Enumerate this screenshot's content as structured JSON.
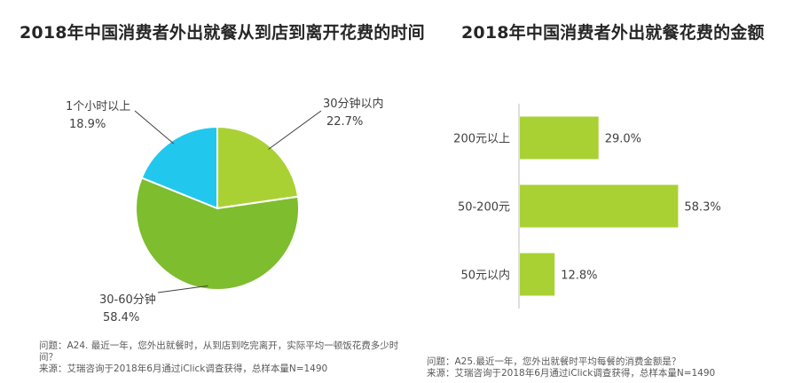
{
  "chart_data": [
    {
      "type": "pie",
      "title": "2018年中国消费者外出就餐从到店到离开花费的时间",
      "slices": [
        {
          "label": "30分钟以内",
          "value": 22.7,
          "value_label": "22.7%",
          "color": "#A9D134"
        },
        {
          "label": "30-60分钟",
          "value": 58.4,
          "value_label": "58.4%",
          "color": "#7DBD2E"
        },
        {
          "label": "1个小时以上",
          "value": 18.9,
          "value_label": "18.9%",
          "color": "#22C7EE"
        }
      ],
      "notes": [
        "问题：A24. 最近一年，您外出就餐时，从到店到吃完离开，实际平均一顿饭花费多少时",
        "间？",
        "来源：艾瑞咨询于2018年6月通过iClick调查获得，总样本量N=1490"
      ]
    },
    {
      "type": "bar",
      "orientation": "horizontal",
      "title": "2018年中国消费者外出就餐花费的金额",
      "categories": [
        "200元以上",
        "50-200元",
        "50元以内"
      ],
      "values": [
        29.0,
        58.3,
        12.8
      ],
      "value_labels": [
        "29.0%",
        "58.3%",
        "12.8%"
      ],
      "color": "#A9D134",
      "xlim": [
        0,
        100
      ],
      "notes": [
        "问题：A25.最近一年，您外出就餐时平均每餐的消费金额是？",
        "来源：艾瑞咨询于2018年6月通过iClick调查获得，总样本量N=1490"
      ]
    }
  ]
}
